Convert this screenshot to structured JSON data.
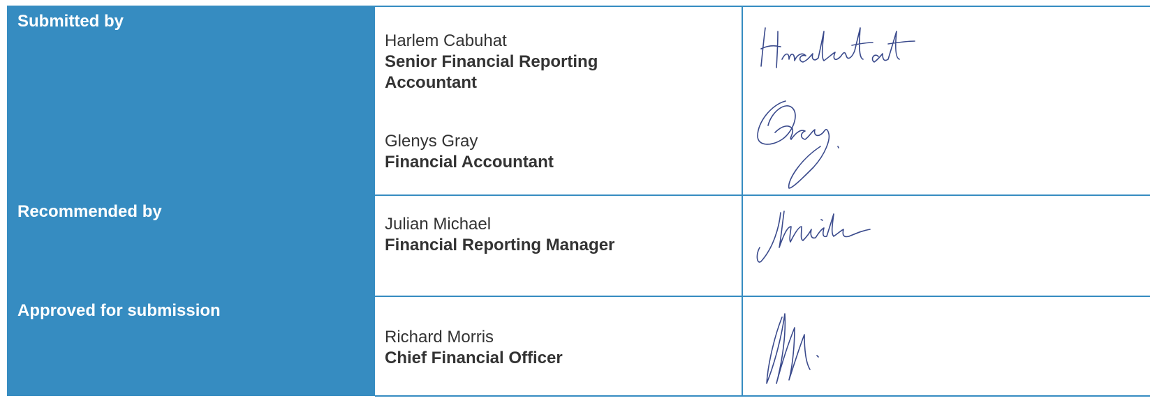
{
  "rows": [
    {
      "label": "Submitted by",
      "people": [
        {
          "name": "Harlem Cabuhat",
          "title": "Senior Financial Reporting Accountant"
        },
        {
          "name": "Glenys Gray",
          "title": "Financial Accountant"
        }
      ]
    },
    {
      "label": "Recommended by",
      "people": [
        {
          "name": "Julian Michael",
          "title": "Financial Reporting Manager"
        }
      ]
    },
    {
      "label": "Approved for submission",
      "people": [
        {
          "name": "Richard Morris",
          "title": "Chief Financial Officer"
        }
      ]
    }
  ]
}
